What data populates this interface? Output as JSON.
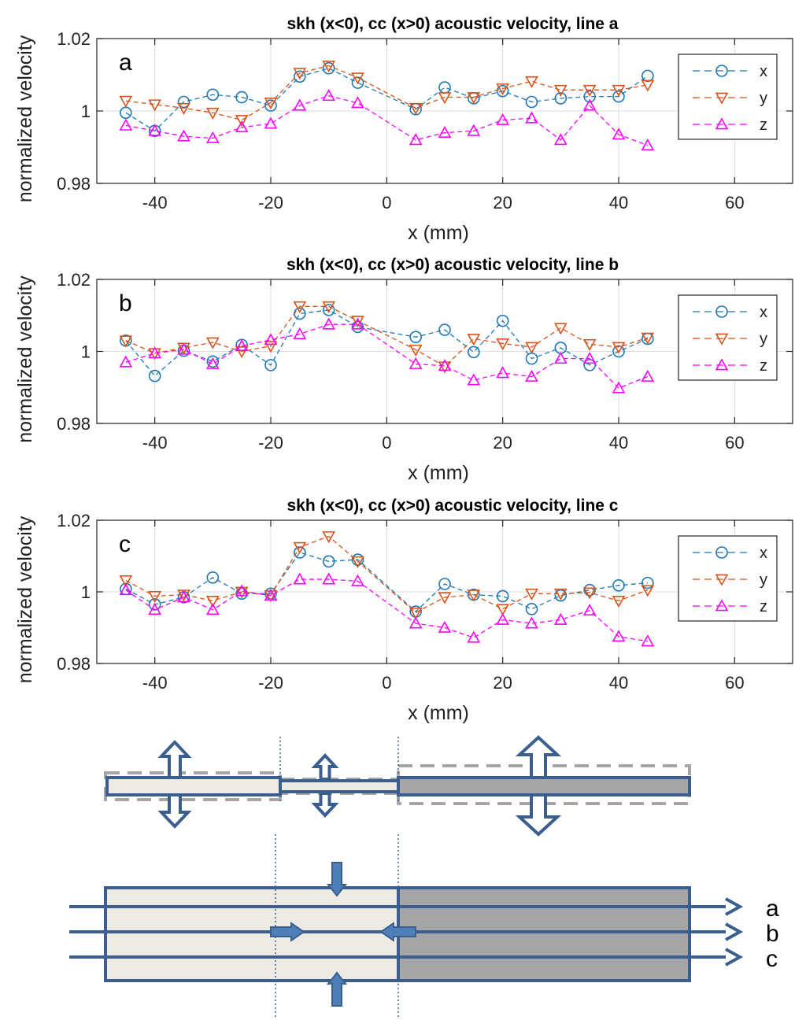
{
  "x_unit_label": "x (mm)",
  "y_label": "normalized velocity",
  "legend": [
    "x",
    "y",
    "z"
  ],
  "colors": {
    "x": "#1f77b4",
    "y": "#d95319",
    "z": "#ff00ff",
    "grid": "#dcdcdc",
    "axis": "#262626",
    "schematic_line": "#3a5f8f",
    "schematic_light": "#edebe3",
    "schematic_dark": "#a6a6a6",
    "schematic_dash": "#a6a6a6",
    "arrow_fill": "#4f7fb8"
  },
  "chart_data": [
    {
      "type": "line",
      "panel": "a",
      "title": "skh (x<0), cc (x>0) acoustic velocity, line a",
      "xlabel": "x (mm)",
      "ylabel": "normalized velocity",
      "xlim": [
        -50,
        70
      ],
      "ylim": [
        0.98,
        1.02
      ],
      "xticks": [
        -40,
        -20,
        0,
        20,
        40,
        60
      ],
      "yticks": [
        0.98,
        1,
        1.02
      ],
      "ytick_labels": [
        "0.98",
        "1",
        "1.02"
      ],
      "x": [
        -45,
        -40,
        -35,
        -30,
        -25,
        -20,
        -15,
        -10,
        -5,
        5,
        10,
        15,
        20,
        25,
        30,
        35,
        40,
        45
      ],
      "series": [
        {
          "name": "x",
          "marker": "circle",
          "values": [
            0.9995,
            0.9945,
            1.0025,
            1.0045,
            1.0038,
            1.0015,
            1.0095,
            1.0118,
            1.0078,
            1.0005,
            1.0065,
            1.0035,
            1.0055,
            1.0025,
            1.0035,
            1.004,
            1.004,
            1.0097
          ]
        },
        {
          "name": "y",
          "marker": "triangle-down",
          "values": [
            1.0028,
            1.0018,
            1.0008,
            0.9995,
            0.9975,
            1.0023,
            1.0105,
            1.0125,
            1.0092,
            1.0008,
            1.0038,
            1.0038,
            1.0062,
            1.0082,
            1.0058,
            1.0058,
            1.0058,
            1.0072
          ]
        },
        {
          "name": "z",
          "marker": "triangle-up",
          "values": [
            0.996,
            0.9945,
            0.993,
            0.9925,
            0.9955,
            0.9965,
            1.0015,
            1.0042,
            1.0022,
            0.992,
            0.994,
            0.9945,
            0.9975,
            0.998,
            0.992,
            1.0015,
            0.9935,
            0.9905
          ]
        }
      ]
    },
    {
      "type": "line",
      "panel": "b",
      "title": "skh (x<0), cc (x>0) acoustic velocity, line b",
      "xlabel": "x (mm)",
      "ylabel": "normalized velocity",
      "xlim": [
        -50,
        70
      ],
      "ylim": [
        0.98,
        1.02
      ],
      "xticks": [
        -40,
        -20,
        0,
        20,
        40,
        60
      ],
      "yticks": [
        0.98,
        1,
        1.02
      ],
      "ytick_labels": [
        "0.98",
        "1",
        "1.02"
      ],
      "x": [
        -45,
        -40,
        -35,
        -30,
        -25,
        -20,
        -15,
        -10,
        -5,
        5,
        10,
        15,
        20,
        25,
        30,
        35,
        40,
        45
      ],
      "series": [
        {
          "name": "x",
          "marker": "circle",
          "values": [
            1.003,
            0.9932,
            1.0002,
            0.9972,
            1.0018,
            0.9962,
            1.0105,
            1.0115,
            1.0068,
            1.004,
            1.006,
            0.9998,
            1.0085,
            0.998,
            1.001,
            0.9962,
            1.0,
            1.0035
          ]
        },
        {
          "name": "y",
          "marker": "triangle-down",
          "values": [
            1.003,
            0.9995,
            1.001,
            1.0025,
            1.0,
            1.0015,
            1.0125,
            1.0125,
            1.0085,
            1.0005,
            0.9958,
            1.0035,
            1.0022,
            1.0012,
            1.0065,
            1.002,
            1.0012,
            1.0038
          ]
        },
        {
          "name": "z",
          "marker": "triangle-up",
          "values": [
            0.997,
            0.9995,
            1.0005,
            0.9965,
            1.0015,
            1.0032,
            1.0048,
            1.0075,
            1.0075,
            0.9965,
            0.996,
            0.992,
            0.994,
            0.993,
            0.998,
            0.998,
            0.9898,
            0.993
          ]
        }
      ]
    },
    {
      "type": "line",
      "panel": "c",
      "title": "skh (x<0), cc (x>0) acoustic velocity, line c",
      "xlabel": "x (mm)",
      "ylabel": "normalized velocity",
      "xlim": [
        -50,
        70
      ],
      "ylim": [
        0.98,
        1.02
      ],
      "xticks": [
        -40,
        -20,
        0,
        20,
        40,
        60
      ],
      "yticks": [
        0.98,
        1,
        1.02
      ],
      "ytick_labels": [
        "0.98",
        "1",
        "1.02"
      ],
      "x": [
        -45,
        -40,
        -35,
        -30,
        -25,
        -20,
        -15,
        -10,
        -5,
        5,
        10,
        15,
        20,
        25,
        30,
        35,
        40,
        45
      ],
      "series": [
        {
          "name": "x",
          "marker": "circle",
          "values": [
            1.0008,
            0.9965,
            0.9985,
            1.004,
            0.9995,
            0.9995,
            1.011,
            1.0085,
            1.009,
            0.9945,
            1.0022,
            0.9992,
            0.9988,
            0.9952,
            0.999,
            1.0005,
            1.0018,
            1.0025
          ]
        },
        {
          "name": "y",
          "marker": "triangle-down",
          "values": [
            1.0032,
            0.9988,
            0.9992,
            0.9975,
            1.0,
            0.999,
            1.0125,
            1.0155,
            1.0085,
            0.9942,
            0.9985,
            0.9992,
            0.9952,
            0.9995,
            0.9995,
            0.9998,
            0.9975,
            1.0005
          ]
        },
        {
          "name": "z",
          "marker": "triangle-up",
          "values": [
            1.0005,
            0.995,
            0.9985,
            0.995,
            1.0002,
            0.999,
            1.0035,
            1.0035,
            1.003,
            0.9912,
            0.99,
            0.9872,
            0.9922,
            0.9912,
            0.9922,
            0.9948,
            0.9875,
            0.9862
          ]
        }
      ]
    }
  ],
  "schematic": {
    "line_labels": [
      "a",
      "b",
      "c"
    ]
  }
}
